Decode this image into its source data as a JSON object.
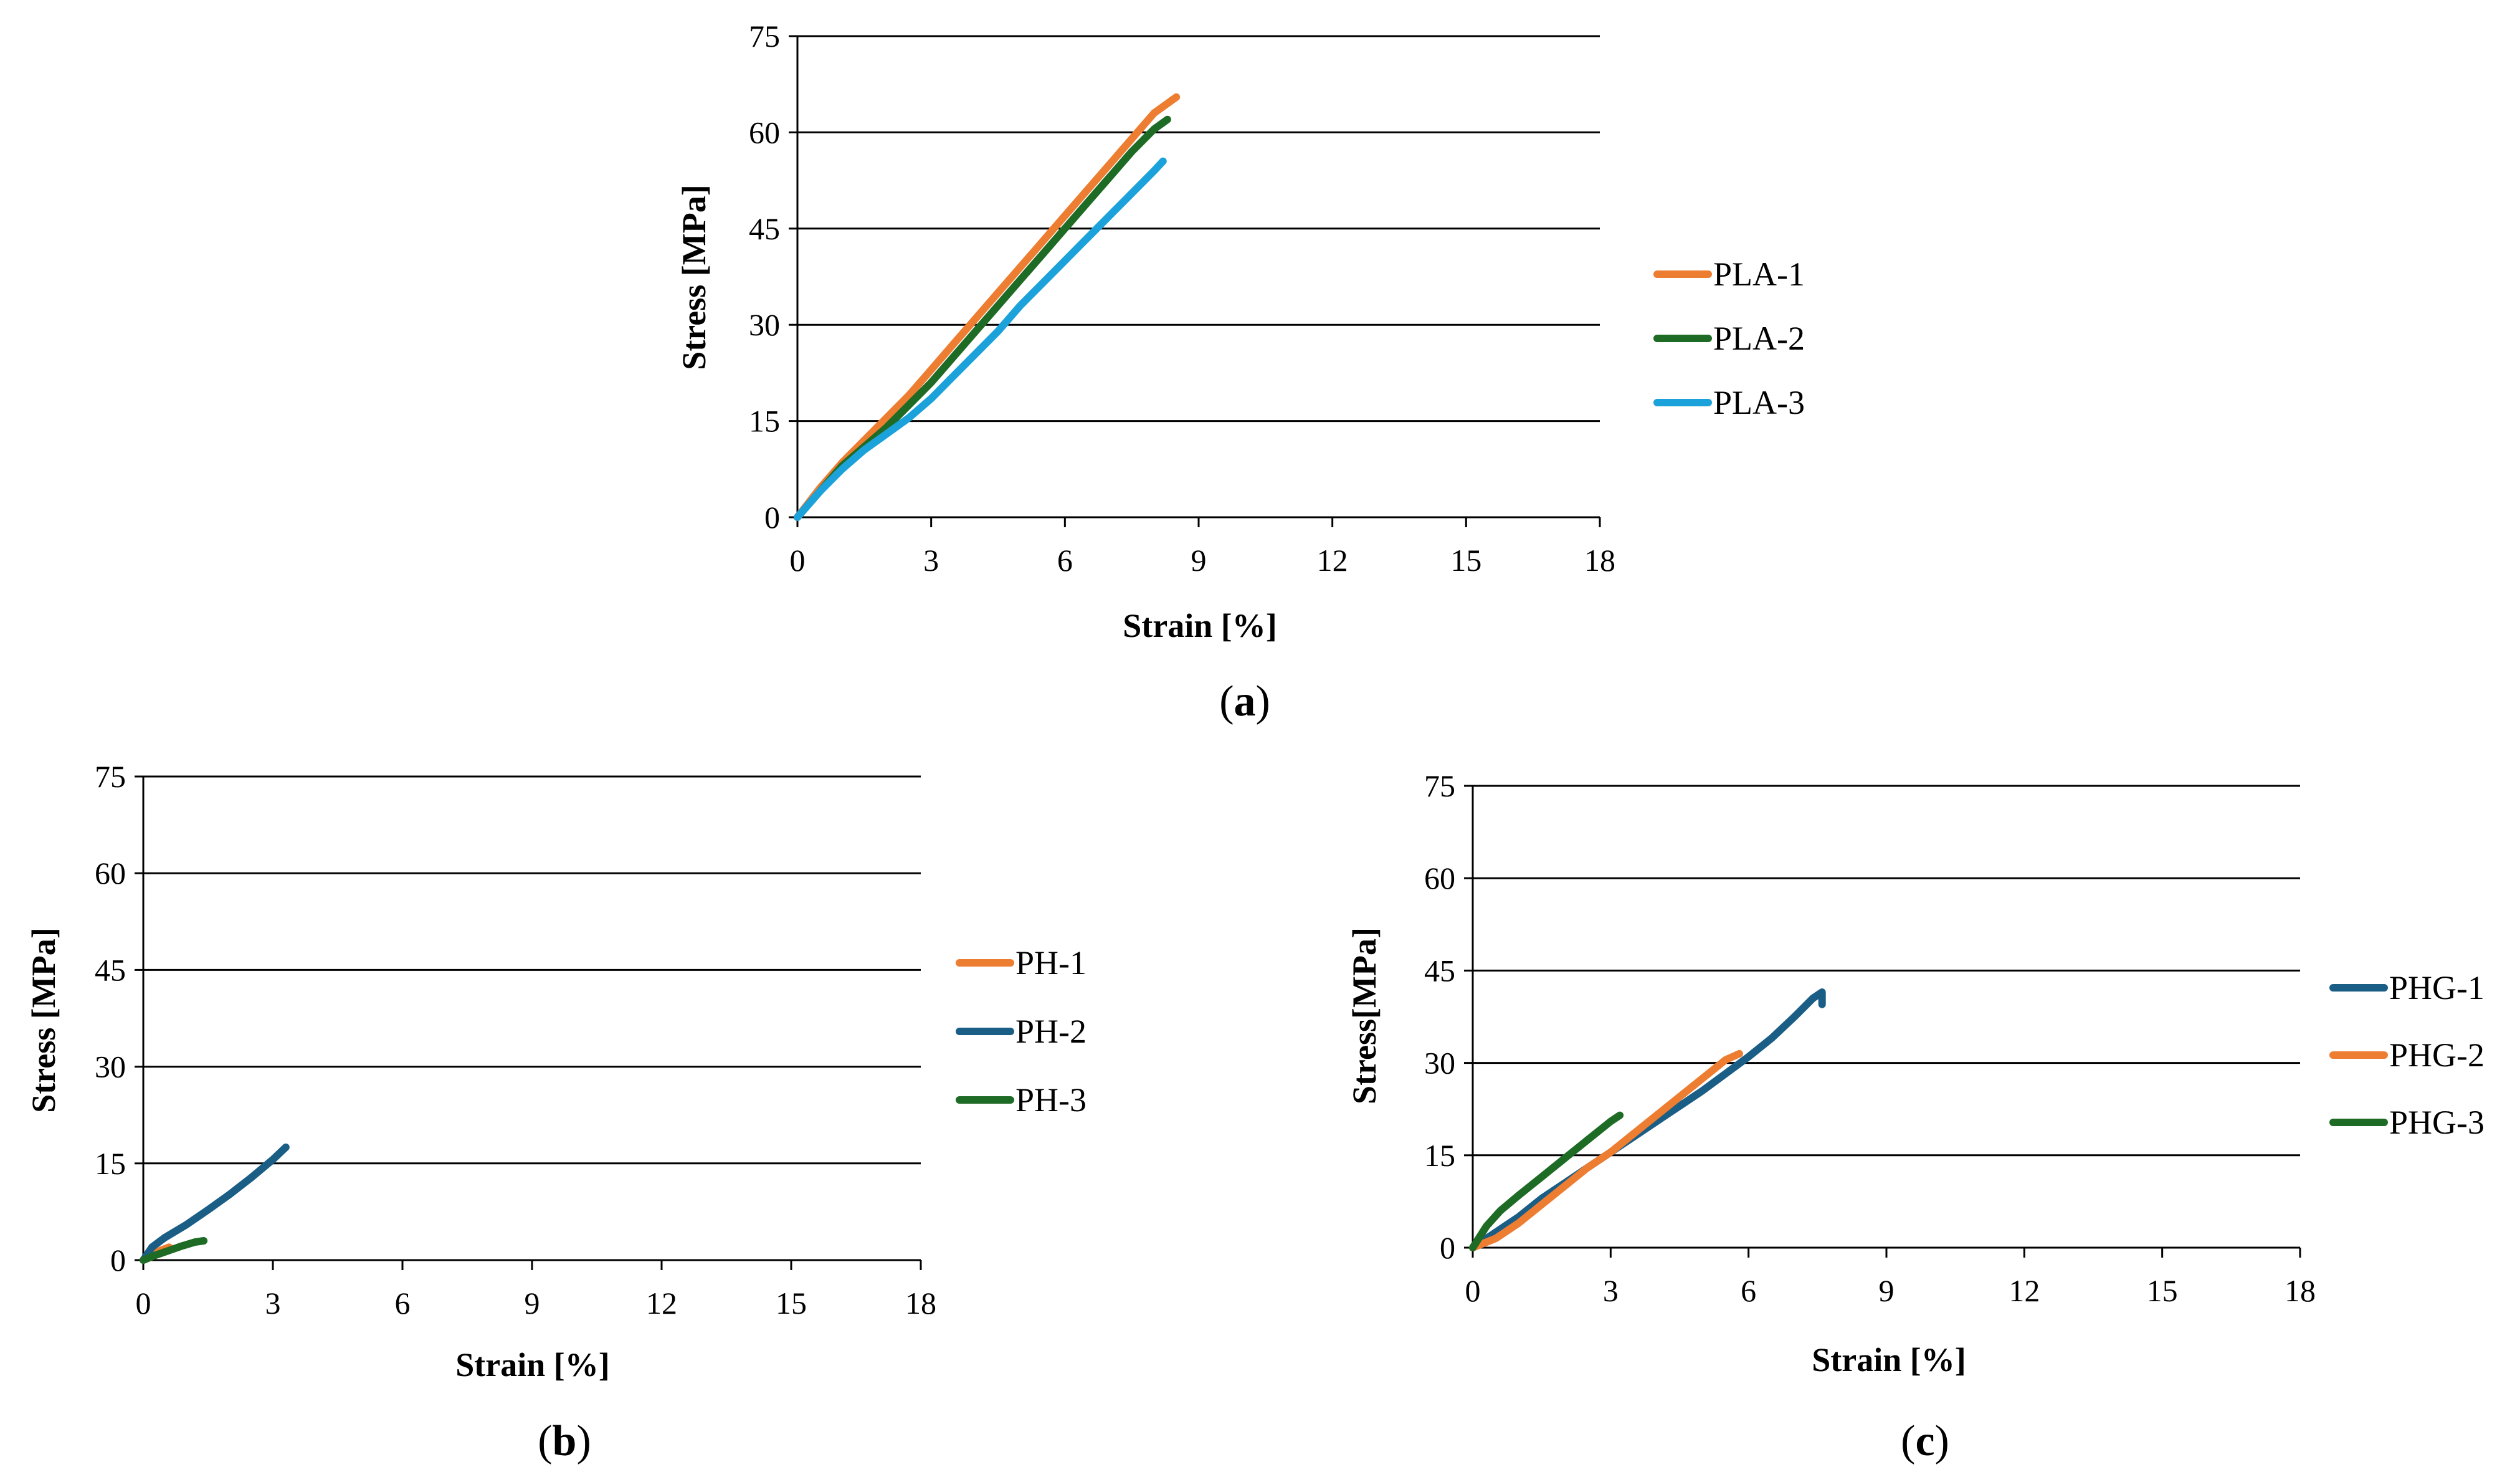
{
  "chart_data": [
    {
      "type": "line",
      "panel": "a",
      "caption_letter": "a",
      "xlabel": "Strain [%]",
      "ylabel": "Stress [MPa]",
      "xlim": [
        0,
        18
      ],
      "ylim": [
        0,
        75
      ],
      "xticks": [
        0,
        3,
        6,
        9,
        12,
        15,
        18
      ],
      "yticks": [
        0,
        15,
        30,
        45,
        60,
        75
      ],
      "grid": "horizontal",
      "legend": "right",
      "series": [
        {
          "name": "PLA-1",
          "color": "#ED7D31",
          "x": [
            0,
            0.5,
            1,
            1.5,
            2,
            2.5,
            3,
            3.5,
            4,
            4.5,
            5,
            5.5,
            6,
            6.5,
            7,
            7.5,
            8,
            8.5
          ],
          "y": [
            0,
            4.5,
            8.5,
            12,
            15.5,
            19,
            23,
            27,
            31,
            35,
            39,
            43,
            47,
            51,
            55,
            59,
            63,
            65.5
          ]
        },
        {
          "name": "PLA-2",
          "color": "#1E6B25",
          "x": [
            0,
            0.5,
            1,
            1.5,
            2,
            2.5,
            3,
            3.5,
            4,
            4.5,
            5,
            5.5,
            6,
            6.5,
            7,
            7.5,
            8,
            8.3
          ],
          "y": [
            0,
            4,
            8,
            11,
            14,
            17.5,
            21,
            25,
            29,
            33,
            37,
            41,
            45,
            49,
            53,
            57,
            60.5,
            62
          ]
        },
        {
          "name": "PLA-3",
          "color": "#1CA2DA",
          "x": [
            0,
            0.5,
            1,
            1.5,
            2,
            2.5,
            3,
            3.5,
            4,
            4.5,
            5,
            5.5,
            6,
            6.5,
            7,
            7.5,
            8,
            8.2
          ],
          "y": [
            0,
            4,
            7.5,
            10.5,
            13,
            15.5,
            18.5,
            22,
            25.5,
            29,
            33,
            36.5,
            40,
            43.5,
            47,
            50.5,
            54,
            55.5
          ]
        }
      ]
    },
    {
      "type": "line",
      "panel": "b",
      "caption_letter": "b",
      "xlabel": "Strain [%]",
      "ylabel": "Stress [MPa]",
      "xlim": [
        0,
        18
      ],
      "ylim": [
        0,
        75
      ],
      "xticks": [
        0,
        3,
        6,
        9,
        12,
        15,
        18
      ],
      "yticks": [
        0,
        15,
        30,
        45,
        60,
        75
      ],
      "grid": "horizontal",
      "legend": "right",
      "series": [
        {
          "name": "PH-1",
          "color": "#ED7D31",
          "x": [
            0,
            0.2,
            0.4,
            0.6
          ],
          "y": [
            0,
            0.8,
            1.5,
            2
          ]
        },
        {
          "name": "PH-2",
          "color": "#1A5E86",
          "x": [
            0,
            0.2,
            0.5,
            1,
            1.5,
            2,
            2.5,
            3,
            3.3
          ],
          "y": [
            0,
            2,
            3.5,
            5.5,
            7.8,
            10.2,
            12.8,
            15.6,
            17.5
          ]
        },
        {
          "name": "PH-3",
          "color": "#1E6B25",
          "x": [
            0,
            0.3,
            0.6,
            0.9,
            1.2,
            1.4
          ],
          "y": [
            0,
            0.8,
            1.5,
            2.2,
            2.8,
            3
          ]
        }
      ]
    },
    {
      "type": "line",
      "panel": "c",
      "caption_letter": "c",
      "xlabel": "Strain [%]",
      "ylabel": "Stress[MPa]",
      "xlim": [
        0,
        18
      ],
      "ylim": [
        0,
        75
      ],
      "xticks": [
        0,
        3,
        6,
        9,
        12,
        15,
        18
      ],
      "yticks": [
        0,
        15,
        30,
        45,
        60,
        75
      ],
      "grid": "horizontal",
      "legend": "right",
      "series": [
        {
          "name": "PHG-1",
          "color": "#1A5E86",
          "x": [
            0,
            0.5,
            1,
            1.5,
            2,
            3,
            4,
            5,
            6,
            6.5,
            7,
            7.4,
            7.6,
            7.6
          ],
          "y": [
            0,
            2.5,
            5,
            8,
            10.5,
            15.5,
            20.5,
            25.5,
            31,
            34,
            37.5,
            40.5,
            41.5,
            39.5
          ]
        },
        {
          "name": "PHG-2",
          "color": "#ED7D31",
          "x": [
            0,
            0.5,
            1,
            1.5,
            2,
            2.5,
            3,
            3.5,
            4,
            4.5,
            5,
            5.5,
            5.8
          ],
          "y": [
            0,
            1.5,
            4,
            7,
            10,
            13,
            15.5,
            18.5,
            21.5,
            24.5,
            27.5,
            30.5,
            31.5
          ]
        },
        {
          "name": "PHG-3",
          "color": "#1E6B25",
          "x": [
            0,
            0.3,
            0.6,
            1,
            1.5,
            2,
            2.5,
            3,
            3.2
          ],
          "y": [
            0,
            3.5,
            6,
            8.5,
            11.5,
            14.5,
            17.5,
            20.5,
            21.5
          ]
        }
      ]
    }
  ]
}
